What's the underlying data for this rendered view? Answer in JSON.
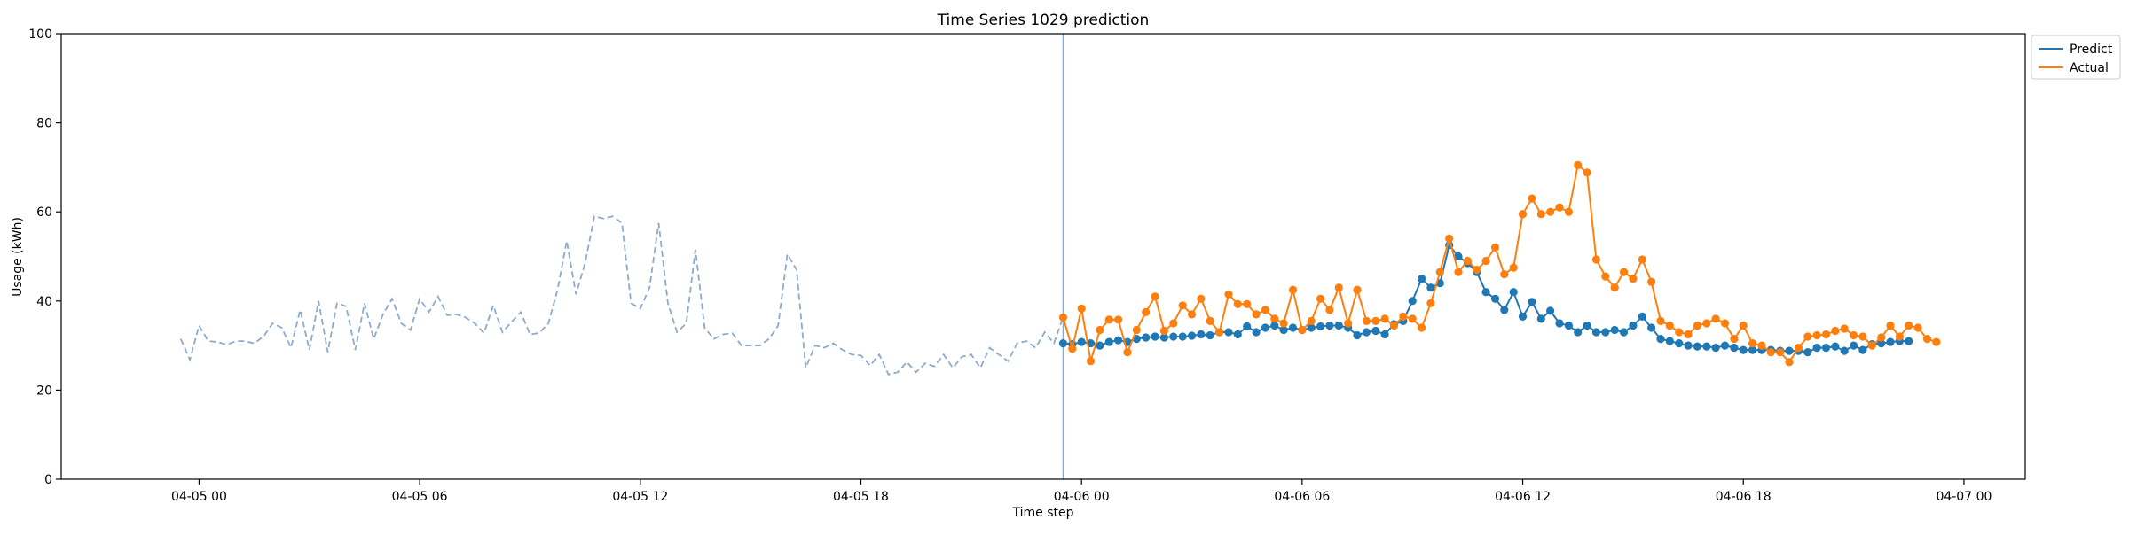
{
  "chart_data": {
    "type": "line",
    "title": "Time Series 1029 prediction",
    "xlabel": "Time step",
    "ylabel": "Usage (kWh)",
    "ylim": [
      0,
      100
    ],
    "yticks": [
      0,
      20,
      40,
      60,
      80,
      100
    ],
    "xlim": [
      "2025-04-04 20:15",
      "2025-04-07 01:40"
    ],
    "xticks": [
      {
        "t": "2025-04-05 00:00",
        "label": "04-05 00"
      },
      {
        "t": "2025-04-05 06:00",
        "label": "04-05 06"
      },
      {
        "t": "2025-04-05 12:00",
        "label": "04-05 12"
      },
      {
        "t": "2025-04-05 18:00",
        "label": "04-05 18"
      },
      {
        "t": "2025-04-06 00:00",
        "label": "04-06 00"
      },
      {
        "t": "2025-04-06 06:00",
        "label": "04-06 06"
      },
      {
        "t": "2025-04-06 12:00",
        "label": "04-06 12"
      },
      {
        "t": "2025-04-06 18:00",
        "label": "04-06 18"
      },
      {
        "t": "2025-04-07 00:00",
        "label": "04-07 00"
      }
    ],
    "split_time": "2025-04-05 23:30",
    "grid": false,
    "legend_position": "outside-top-right",
    "colors": {
      "history": "#8eaacb",
      "predict": "#1f77b4",
      "actual": "#ff7f0e",
      "split_line": "#8eaacb",
      "axes": "#000000"
    },
    "history": {
      "start": "2025-04-04 23:30",
      "step_minutes": 15,
      "values": [
        31.5,
        26.8,
        34.5,
        31.0,
        30.8,
        30.2,
        31.0,
        31.0,
        30.5,
        32.0,
        35.0,
        34.0,
        29.5,
        38.0,
        29.0,
        40.0,
        28.5,
        39.5,
        38.8,
        29.0,
        39.5,
        31.5,
        37.0,
        40.5,
        35.0,
        33.5,
        40.5,
        37.5,
        41.0,
        36.8,
        37.0,
        36.3,
        35.0,
        32.8,
        39.0,
        33.0,
        35.3,
        37.5,
        32.5,
        32.8,
        35.0,
        42.5,
        53.5,
        41.5,
        48.5,
        59.0,
        58.5,
        59.0,
        57.5,
        39.5,
        38.3,
        43.0,
        57.5,
        39.5,
        33.0,
        35.0,
        51.5,
        34.0,
        31.5,
        32.5,
        32.8,
        30.0,
        30.0,
        30.0,
        31.5,
        34.5,
        50.5,
        47.0,
        25.0,
        30.0,
        29.5,
        30.5,
        29.0,
        28.0,
        27.8,
        25.5,
        28.0,
        23.5,
        24.0,
        26.3,
        24.0,
        26.0,
        25.3,
        28.0,
        25.0,
        27.5,
        28.0,
        25.0,
        29.5,
        28.0,
        26.5,
        30.5,
        31.0,
        29.5,
        33.0,
        30.5,
        36.5
      ]
    },
    "series": [
      {
        "name": "Predict",
        "start": "2025-04-05 23:30",
        "step_minutes": 15,
        "values": [
          30.5,
          30.3,
          30.8,
          30.5,
          30.0,
          30.8,
          31.2,
          30.8,
          31.5,
          31.8,
          32.0,
          31.8,
          32.0,
          32.0,
          32.2,
          32.5,
          32.3,
          33.0,
          33.0,
          32.5,
          34.3,
          33.0,
          34.0,
          34.5,
          33.5,
          34.0,
          33.5,
          34.0,
          34.3,
          34.5,
          34.5,
          34.0,
          32.3,
          33.0,
          33.3,
          32.5,
          34.8,
          35.5,
          40.0,
          45.0,
          43.0,
          44.0,
          52.5,
          50.0,
          48.5,
          46.5,
          42.0,
          40.5,
          38.0,
          42.0,
          36.5,
          39.8,
          36.0,
          37.8,
          35.0,
          34.5,
          33.0,
          34.5,
          33.0,
          33.0,
          33.5,
          33.0,
          34.5,
          36.5,
          34.0,
          31.5,
          31.0,
          30.5,
          30.0,
          29.8,
          29.8,
          29.5,
          30.0,
          29.5,
          29.0,
          29.0,
          29.0,
          29.0,
          28.8,
          28.8,
          28.8,
          28.5,
          29.5,
          29.5,
          29.8,
          28.8,
          30.0,
          29.0,
          30.3,
          30.5,
          30.8,
          31.0,
          31.0
        ]
      },
      {
        "name": "Actual",
        "start": "2025-04-05 23:30",
        "step_minutes": 15,
        "values": [
          36.3,
          29.3,
          38.3,
          26.5,
          33.5,
          35.8,
          35.8,
          28.5,
          33.5,
          37.5,
          41.0,
          33.3,
          35.0,
          39.0,
          37.0,
          40.5,
          35.5,
          33.0,
          41.5,
          39.3,
          39.3,
          37.0,
          38.0,
          36.0,
          35.0,
          42.5,
          33.5,
          35.5,
          40.5,
          38.0,
          43.0,
          35.0,
          42.5,
          35.5,
          35.5,
          36.0,
          34.5,
          36.5,
          36.0,
          34.0,
          39.5,
          46.5,
          54.0,
          46.5,
          49.0,
          47.0,
          49.0,
          52.0,
          46.0,
          47.5,
          59.5,
          63.0,
          59.5,
          60.0,
          61.0,
          60.0,
          70.5,
          68.8,
          49.3,
          45.5,
          43.0,
          46.5,
          45.0,
          49.3,
          44.3,
          35.5,
          34.5,
          33.0,
          32.5,
          34.5,
          35.0,
          36.0,
          35.0,
          31.5,
          34.5,
          30.5,
          30.0,
          28.5,
          28.5,
          26.3,
          29.5,
          32.0,
          32.3,
          32.5,
          33.3,
          33.8,
          32.3,
          32.0,
          30.0,
          31.8,
          34.5,
          32.0,
          34.5,
          34.0,
          31.5,
          30.8
        ]
      }
    ]
  }
}
